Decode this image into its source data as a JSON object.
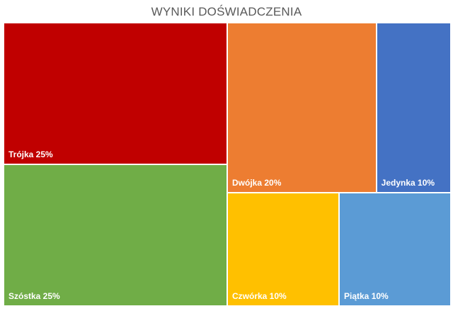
{
  "chart_data": {
    "type": "treemap",
    "title": "WYNIKI DOŚWIADCZENIA",
    "items": [
      {
        "name": "Trójka",
        "value": 25,
        "label": "Trójka 25%",
        "color": "#C00000"
      },
      {
        "name": "Szóstka",
        "value": 25,
        "label": "Szóstka 25%",
        "color": "#70AD47"
      },
      {
        "name": "Dwójka",
        "value": 20,
        "label": "Dwójka 20%",
        "color": "#ED7D31"
      },
      {
        "name": "Jedynka",
        "value": 10,
        "label": "Jedynka 10%",
        "color": "#4472C4"
      },
      {
        "name": "Czwórka",
        "value": 10,
        "label": "Czwórka 10%",
        "color": "#FFC000"
      },
      {
        "name": "Piątka",
        "value": 10,
        "label": "Piątka 10%",
        "color": "#5B9BD5"
      }
    ]
  }
}
